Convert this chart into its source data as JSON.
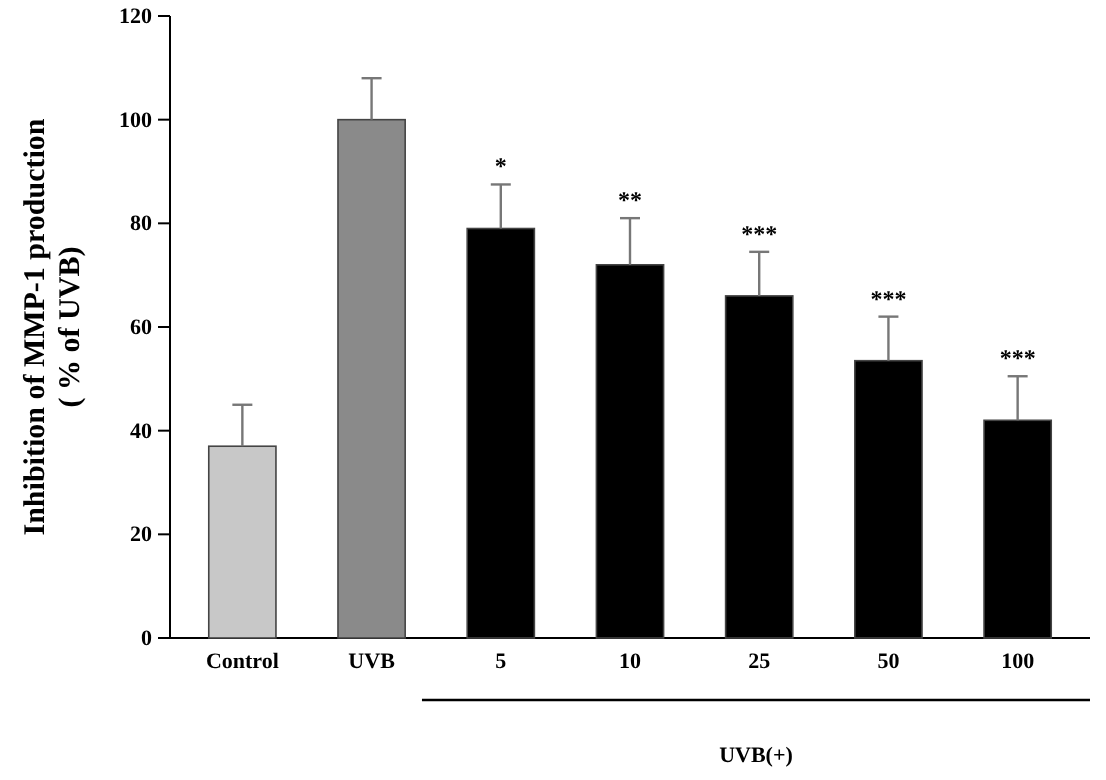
{
  "chart_data": {
    "type": "bar",
    "ylabel": "Inhibition of MMP-1 production\n( % of UVB)",
    "categories": [
      "Control",
      "UVB",
      "5",
      "10",
      "25",
      "50",
      "100"
    ],
    "values": [
      37,
      100,
      79,
      72,
      66,
      53.5,
      42
    ],
    "errors": [
      8,
      8,
      8.5,
      9,
      8.5,
      8.5,
      8.5
    ],
    "colors": [
      "#c8c8c8",
      "#8a8a8a",
      "#000000",
      "#000000",
      "#000000",
      "#000000",
      "#000000"
    ],
    "ylim": [
      0,
      120
    ],
    "yticks": [
      0,
      20,
      40,
      60,
      80,
      100,
      120
    ],
    "grid": false,
    "annotations": [
      {
        "text": "*",
        "x": "5",
        "y": 87.5
      },
      {
        "text": "**",
        "x": "10",
        "y": 81
      },
      {
        "text": "***",
        "x": "25",
        "y": 74.5
      },
      {
        "text": "***",
        "x": "50",
        "y": 62
      },
      {
        "text": "***",
        "x": "100",
        "y": 50.5
      },
      "UVB(+)"
    ]
  }
}
